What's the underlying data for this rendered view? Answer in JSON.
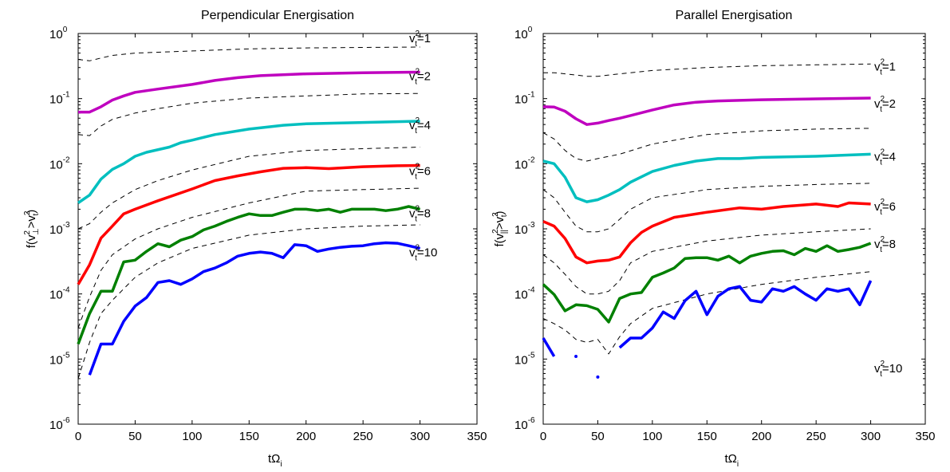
{
  "chart_data": [
    {
      "type": "line",
      "title": "Perpendicular Energisation",
      "xlabel": "tΩ_i",
      "ylabel": "f(v_⊥^2>v_t^2)",
      "xlim": [
        0,
        350
      ],
      "ylim": [
        1e-06,
        1
      ],
      "yscale": "log",
      "xticks": [
        "0",
        "50",
        "100",
        "150",
        "200",
        "250",
        "300",
        "350"
      ],
      "yticks": [
        "10^-6",
        "10^-5",
        "10^-4",
        "10^-3",
        "10^-2",
        "10^-1",
        "10^0"
      ],
      "series": [
        {
          "name": "v_t^2=1",
          "style": "dashed",
          "color": "#000000",
          "x": [
            0,
            10,
            20,
            30,
            50,
            100,
            150,
            200,
            250,
            300
          ],
          "y": [
            0.4,
            0.38,
            0.42,
            0.46,
            0.5,
            0.54,
            0.58,
            0.6,
            0.61,
            0.62
          ]
        },
        {
          "name": "v_t^2=2",
          "style": "solid",
          "color": "#BF00BF",
          "x": [
            0,
            10,
            20,
            30,
            40,
            50,
            70,
            100,
            120,
            140,
            160,
            200,
            250,
            300
          ],
          "y": [
            0.062,
            0.062,
            0.075,
            0.095,
            0.11,
            0.125,
            0.14,
            0.165,
            0.19,
            0.21,
            0.225,
            0.24,
            0.25,
            0.255
          ]
        },
        {
          "name": "",
          "style": "dashed",
          "color": "#000000",
          "x": [
            0,
            10,
            20,
            30,
            50,
            70,
            100,
            150,
            200,
            250,
            300
          ],
          "y": [
            0.028,
            0.027,
            0.038,
            0.048,
            0.06,
            0.07,
            0.085,
            0.102,
            0.11,
            0.118,
            0.12
          ]
        },
        {
          "name": "v_t^2=4",
          "style": "solid",
          "color": "#00BFBF",
          "x": [
            0,
            10,
            20,
            30,
            40,
            50,
            60,
            80,
            90,
            100,
            120,
            150,
            180,
            200,
            250,
            300
          ],
          "y": [
            0.0025,
            0.0033,
            0.0058,
            0.0082,
            0.01,
            0.013,
            0.015,
            0.018,
            0.021,
            0.023,
            0.028,
            0.034,
            0.039,
            0.041,
            0.043,
            0.045
          ]
        },
        {
          "name": "",
          "style": "dashed",
          "color": "#000000",
          "x": [
            0,
            10,
            20,
            30,
            50,
            70,
            100,
            150,
            200,
            250,
            300
          ],
          "y": [
            0.001,
            0.0012,
            0.0018,
            0.0025,
            0.004,
            0.0055,
            0.008,
            0.013,
            0.016,
            0.017,
            0.018
          ]
        },
        {
          "name": "v_t^2=6",
          "style": "solid",
          "color": "#FF0000",
          "x": [
            0,
            10,
            20,
            30,
            40,
            50,
            70,
            100,
            120,
            140,
            160,
            180,
            200,
            220,
            250,
            280,
            300
          ],
          "y": [
            0.00014,
            0.00028,
            0.00072,
            0.0011,
            0.0017,
            0.002,
            0.0027,
            0.0041,
            0.0055,
            0.0065,
            0.0075,
            0.0085,
            0.0087,
            0.0084,
            0.009,
            0.0093,
            0.0094
          ]
        },
        {
          "name": "",
          "style": "dashed",
          "color": "#000000",
          "x": [
            0,
            10,
            20,
            30,
            50,
            70,
            100,
            150,
            200,
            250,
            300
          ],
          "y": [
            3e-05,
            9e-05,
            0.00023,
            0.0004,
            0.0007,
            0.001,
            0.0015,
            0.0025,
            0.0038,
            0.004,
            0.0042
          ]
        },
        {
          "name": "v_t^2=8",
          "style": "solid",
          "color": "#008000",
          "x": [
            0,
            10,
            20,
            30,
            40,
            50,
            60,
            70,
            80,
            90,
            100,
            110,
            120,
            130,
            140,
            150,
            160,
            170,
            180,
            190,
            200,
            210,
            220,
            230,
            240,
            250,
            260,
            270,
            280,
            290,
            300
          ],
          "y": [
            1.7e-05,
            5e-05,
            0.00011,
            0.00011,
            0.00031,
            0.00033,
            0.00045,
            0.00059,
            0.00053,
            0.00067,
            0.00076,
            0.00096,
            0.0011,
            0.0013,
            0.0015,
            0.0017,
            0.0016,
            0.0016,
            0.0018,
            0.002,
            0.002,
            0.0019,
            0.002,
            0.0018,
            0.002,
            0.002,
            0.002,
            0.0019,
            0.002,
            0.0022,
            0.002
          ]
        },
        {
          "name": "",
          "style": "dashed",
          "color": "#000000",
          "x": [
            0,
            10,
            20,
            30,
            50,
            70,
            100,
            150,
            200,
            250,
            300
          ],
          "y": [
            5e-06,
            1.8e-05,
            5e-05,
            8e-05,
            0.00018,
            0.0003,
            0.0005,
            0.0008,
            0.001,
            0.0011,
            0.00115
          ]
        },
        {
          "name": "v_t^2=10",
          "style": "solid",
          "color": "#0000FF",
          "x": [
            10,
            20,
            30,
            40,
            50,
            60,
            70,
            80,
            90,
            100,
            110,
            120,
            130,
            140,
            150,
            160,
            170,
            180,
            190,
            200,
            210,
            220,
            230,
            240,
            250,
            260,
            270,
            280,
            290,
            300
          ],
          "y": [
            5.7e-06,
            1.7e-05,
            1.7e-05,
            3.8e-05,
            6.5e-05,
            8.8e-05,
            0.00015,
            0.00016,
            0.00014,
            0.00017,
            0.00022,
            0.00025,
            0.0003,
            0.00038,
            0.00042,
            0.00044,
            0.00042,
            0.00036,
            0.00057,
            0.00055,
            0.00045,
            0.00049,
            0.00052,
            0.00054,
            0.00055,
            0.00059,
            0.00061,
            0.0006,
            0.00055,
            0.0005
          ]
        }
      ]
    },
    {
      "type": "line",
      "title": "Parallel Energisation",
      "xlabel": "tΩ_i",
      "ylabel": "f(v_||^2>v_t^2)",
      "xlim": [
        0,
        350
      ],
      "ylim": [
        1e-06,
        1
      ],
      "yscale": "log",
      "xticks": [
        "0",
        "50",
        "100",
        "150",
        "200",
        "250",
        "300",
        "350"
      ],
      "yticks": [
        "10^-6",
        "10^-5",
        "10^-4",
        "10^-3",
        "10^-2",
        "10^-1",
        "10^0"
      ],
      "series": [
        {
          "name": "v_t^2=1",
          "style": "dashed",
          "color": "#000000",
          "x": [
            0,
            10,
            20,
            30,
            40,
            50,
            70,
            100,
            150,
            200,
            250,
            300
          ],
          "y": [
            0.25,
            0.25,
            0.24,
            0.23,
            0.22,
            0.22,
            0.24,
            0.27,
            0.3,
            0.32,
            0.33,
            0.34
          ]
        },
        {
          "name": "v_t^2=2",
          "style": "solid",
          "color": "#BF00BF",
          "x": [
            0,
            10,
            20,
            30,
            40,
            50,
            60,
            70,
            80,
            100,
            120,
            140,
            160,
            200,
            250,
            300
          ],
          "y": [
            0.075,
            0.074,
            0.064,
            0.049,
            0.04,
            0.042,
            0.046,
            0.05,
            0.055,
            0.067,
            0.08,
            0.088,
            0.092,
            0.096,
            0.099,
            0.102
          ]
        },
        {
          "name": "",
          "style": "dashed",
          "color": "#000000",
          "x": [
            0,
            10,
            20,
            30,
            40,
            50,
            70,
            100,
            150,
            200,
            250,
            300
          ],
          "y": [
            0.03,
            0.024,
            0.016,
            0.012,
            0.011,
            0.012,
            0.014,
            0.02,
            0.028,
            0.032,
            0.034,
            0.035
          ]
        },
        {
          "name": "v_t^2=4",
          "style": "solid",
          "color": "#00BFBF",
          "x": [
            0,
            10,
            20,
            30,
            40,
            50,
            60,
            70,
            80,
            100,
            120,
            140,
            160,
            180,
            200,
            250,
            300
          ],
          "y": [
            0.011,
            0.01,
            0.0062,
            0.003,
            0.0026,
            0.0028,
            0.0033,
            0.004,
            0.0052,
            0.0076,
            0.0094,
            0.011,
            0.012,
            0.012,
            0.0125,
            0.013,
            0.014
          ]
        },
        {
          "name": "",
          "style": "dashed",
          "color": "#000000",
          "x": [
            0,
            10,
            20,
            30,
            40,
            50,
            60,
            70,
            80,
            100,
            150,
            200,
            250,
            300
          ],
          "y": [
            0.004,
            0.003,
            0.0018,
            0.0011,
            0.0009,
            0.0009,
            0.001,
            0.0014,
            0.002,
            0.003,
            0.004,
            0.0045,
            0.0048,
            0.005
          ]
        },
        {
          "name": "v_t^2=6",
          "style": "solid",
          "color": "#FF0000",
          "x": [
            0,
            10,
            20,
            30,
            40,
            50,
            60,
            70,
            80,
            90,
            100,
            120,
            150,
            180,
            200,
            220,
            250,
            270,
            280,
            300
          ],
          "y": [
            0.0013,
            0.0011,
            0.00071,
            0.00037,
            0.0003,
            0.00032,
            0.00033,
            0.00037,
            0.00061,
            0.00088,
            0.0011,
            0.0015,
            0.0018,
            0.0021,
            0.002,
            0.0022,
            0.0024,
            0.0022,
            0.0025,
            0.0024
          ]
        },
        {
          "name": "",
          "style": "dashed",
          "color": "#000000",
          "x": [
            0,
            10,
            20,
            30,
            40,
            50,
            60,
            70,
            80,
            100,
            150,
            200,
            250,
            300
          ],
          "y": [
            0.0004,
            0.0003,
            0.0002,
            0.00013,
            0.0001,
            0.0001,
            0.00011,
            0.00016,
            0.0003,
            0.00045,
            0.00065,
            0.0008,
            0.0009,
            0.001
          ]
        },
        {
          "name": "v_t^2=8",
          "style": "solid",
          "color": "#008000",
          "x": [
            0,
            10,
            20,
            30,
            40,
            50,
            60,
            70,
            80,
            90,
            100,
            110,
            120,
            130,
            140,
            150,
            160,
            170,
            180,
            190,
            200,
            210,
            220,
            230,
            240,
            250,
            260,
            270,
            280,
            290,
            300
          ],
          "y": [
            0.00014,
            9.8e-05,
            5.5e-05,
            6.8e-05,
            6.6e-05,
            5.8e-05,
            3.7e-05,
            8.5e-05,
            0.0001,
            0.000105,
            0.00018,
            0.00021,
            0.00025,
            0.00035,
            0.00036,
            0.00036,
            0.00033,
            0.00038,
            0.0003,
            0.00038,
            0.00042,
            0.00045,
            0.00046,
            0.0004,
            0.0005,
            0.00045,
            0.00055,
            0.00045,
            0.00048,
            0.00052,
            0.0006
          ]
        },
        {
          "name": "",
          "style": "dashed",
          "color": "#000000",
          "x": [
            0,
            10,
            20,
            30,
            40,
            50,
            60,
            70,
            80,
            100,
            150,
            200,
            250,
            300
          ],
          "y": [
            4.2e-05,
            3.5e-05,
            2.8e-05,
            2e-05,
            1.8e-05,
            2e-05,
            1.2e-05,
            2.2e-05,
            3.5e-05,
            6e-05,
            0.0001,
            0.00014,
            0.00018,
            0.00022
          ]
        },
        {
          "name": "v_t^2=10",
          "style": "solid",
          "color": "#0000FF",
          "x": [
            0,
            10
          ],
          "y": [
            2.1e-05,
            1.1e-05
          ],
          "x2": [
            70,
            80,
            90,
            100,
            110,
            120,
            130,
            140,
            150,
            160,
            170,
            180,
            190,
            200,
            210,
            220,
            230,
            240,
            250,
            260,
            270,
            280,
            290,
            300
          ],
          "y2": [
            1.5e-05,
            2.1e-05,
            2.1e-05,
            3e-05,
            5.3e-05,
            4.2e-05,
            7.9e-05,
            0.00011,
            4.8e-05,
            9.2e-05,
            0.00012,
            0.00013,
            8e-05,
            7.5e-05,
            0.00012,
            0.00011,
            0.00013,
            0.0001,
            8e-05,
            0.00012,
            0.00011,
            0.00012,
            6.8e-05,
            0.00016
          ],
          "points": [
            {
              "x": 30,
              "y": 1.1e-05
            },
            {
              "x": 50,
              "y": 5.3e-06
            }
          ]
        }
      ]
    }
  ],
  "labels": [
    {
      "base": "v",
      "sup": "2",
      "sub": "t",
      "rest": "=1"
    },
    {
      "base": "v",
      "sup": "2",
      "sub": "t",
      "rest": "=2"
    },
    {
      "base": "v",
      "sup": "2",
      "sub": "t",
      "rest": "=4"
    },
    {
      "base": "v",
      "sup": "2",
      "sub": "t",
      "rest": "=6"
    },
    {
      "base": "v",
      "sup": "2",
      "sub": "t",
      "rest": "=8"
    },
    {
      "base": "v",
      "sup": "2",
      "sub": "t",
      "rest": "=10"
    }
  ]
}
